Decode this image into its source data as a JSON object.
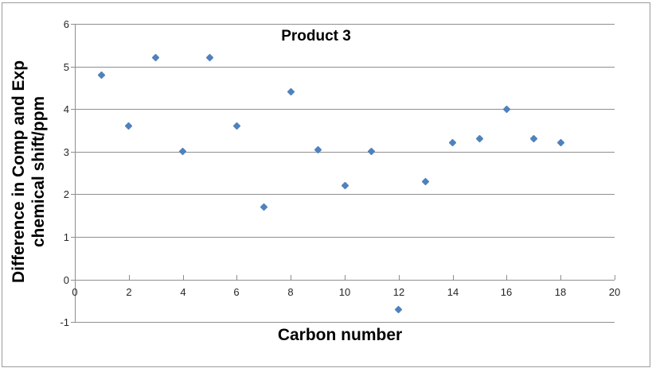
{
  "chart_data": {
    "type": "scatter",
    "title": "Product 3",
    "xlabel": "Carbon number",
    "ylabel": "Difference in Comp and Exp chemical shift/ppm",
    "ylabel_lines": [
      "Difference in Comp and Exp",
      "chemical shift/ppm"
    ],
    "xlim": [
      0,
      20
    ],
    "ylim": [
      -1,
      6
    ],
    "x_ticks": [
      0,
      2,
      4,
      6,
      8,
      10,
      12,
      14,
      16,
      18,
      20
    ],
    "y_ticks": [
      6,
      5,
      4,
      3,
      2,
      1,
      0,
      -1
    ],
    "grid": "horizontal-on",
    "legend": "none",
    "series": [
      {
        "marker": "diamond",
        "color": "#4F81BD",
        "points": [
          [
            1,
            4.8
          ],
          [
            2,
            3.6
          ],
          [
            3,
            5.2
          ],
          [
            4,
            3.0
          ],
          [
            5,
            5.2
          ],
          [
            6,
            3.6
          ],
          [
            7,
            1.7
          ],
          [
            8,
            4.4
          ],
          [
            9,
            3.05
          ],
          [
            10,
            2.2
          ],
          [
            11,
            3.0
          ],
          [
            12,
            -0.7
          ],
          [
            13,
            2.3
          ],
          [
            14,
            3.2
          ],
          [
            15,
            3.3
          ],
          [
            16,
            4.0
          ],
          [
            17,
            3.3
          ],
          [
            18,
            3.2
          ]
        ]
      }
    ],
    "colors": {
      "marker": "#4F81BD",
      "gridline": "#8E8E8E",
      "axis_line": "#8E8E8E",
      "tick_text": "#262626",
      "title_text": "#000000",
      "frame_border": "#9B9B9B",
      "background": "#FFFFFF"
    }
  }
}
